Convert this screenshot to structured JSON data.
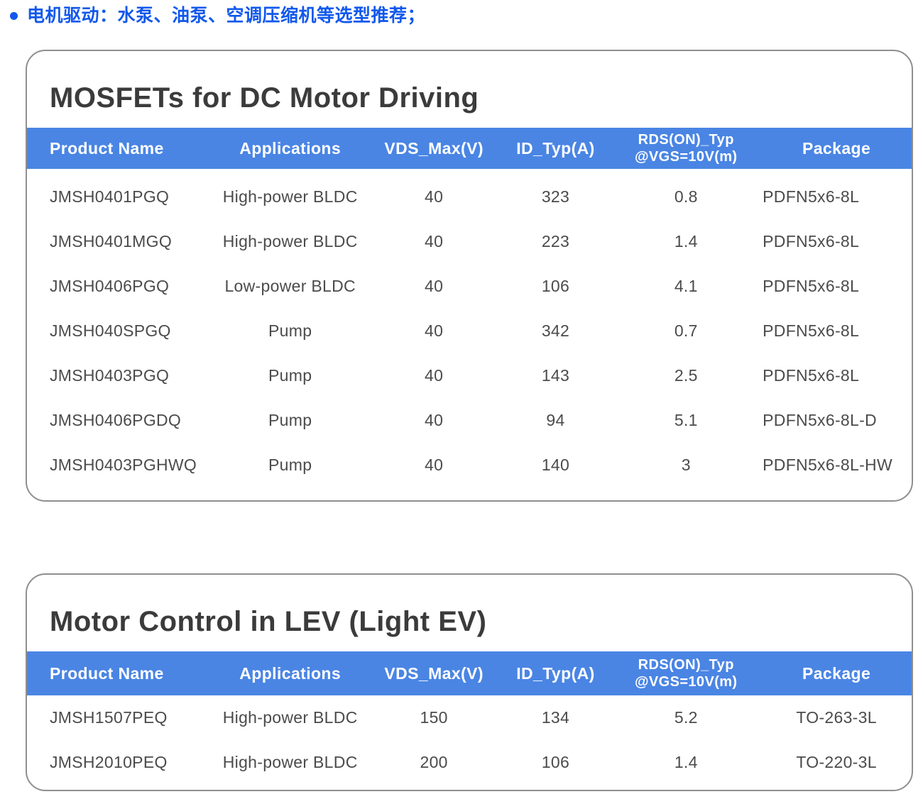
{
  "page": {
    "bullet_text": "电机驱动：水泵、油泵、空调压缩机等选型推荐；",
    "bullet_color": "#1158ec"
  },
  "tables": [
    {
      "title": "MOSFETs for DC Motor Driving",
      "header_color": "#4a85e4",
      "columns": [
        {
          "label": "Product Name"
        },
        {
          "label": "Applications"
        },
        {
          "label": "VDS_Max(V)"
        },
        {
          "label": "ID_Typ(A)"
        },
        {
          "label": "RDS(ON)_Typ",
          "label2": "@VGS=10V(m)"
        },
        {
          "label": "Package"
        }
      ],
      "rows": [
        [
          "JMSH0401PGQ",
          "High-power BLDC",
          "40",
          "323",
          "0.8",
          "PDFN5x6-8L"
        ],
        [
          "JMSH0401MGQ",
          "High-power BLDC",
          "40",
          "223",
          "1.4",
          "PDFN5x6-8L"
        ],
        [
          "JMSH0406PGQ",
          "Low-power BLDC",
          "40",
          "106",
          "4.1",
          "PDFN5x6-8L"
        ],
        [
          "JMSH040SPGQ",
          "Pump",
          "40",
          "342",
          "0.7",
          "PDFN5x6-8L"
        ],
        [
          "JMSH0403PGQ",
          "Pump",
          "40",
          "143",
          "2.5",
          "PDFN5x6-8L"
        ],
        [
          "JMSH0406PGDQ",
          "Pump",
          "40",
          "94",
          "5.1",
          "PDFN5x6-8L-D"
        ],
        [
          "JMSH0403PGHWQ",
          "Pump",
          "40",
          "140",
          "3",
          "PDFN5x6-8L-HW"
        ]
      ]
    },
    {
      "title": "Motor Control in LEV (Light EV)",
      "header_color": "#4a85e4",
      "columns": [
        {
          "label": "Product Name"
        },
        {
          "label": "Applications"
        },
        {
          "label": "VDS_Max(V)"
        },
        {
          "label": "ID_Typ(A)"
        },
        {
          "label": "RDS(ON)_Typ",
          "label2": "@VGS=10V(m)"
        },
        {
          "label": "Package"
        }
      ],
      "rows": [
        [
          "JMSH1507PEQ",
          "High-power BLDC",
          "150",
          "134",
          "5.2",
          "TO-263-3L"
        ],
        [
          "JMSH2010PEQ",
          "High-power BLDC",
          "200",
          "106",
          "1.4",
          "TO-220-3L"
        ]
      ]
    }
  ]
}
